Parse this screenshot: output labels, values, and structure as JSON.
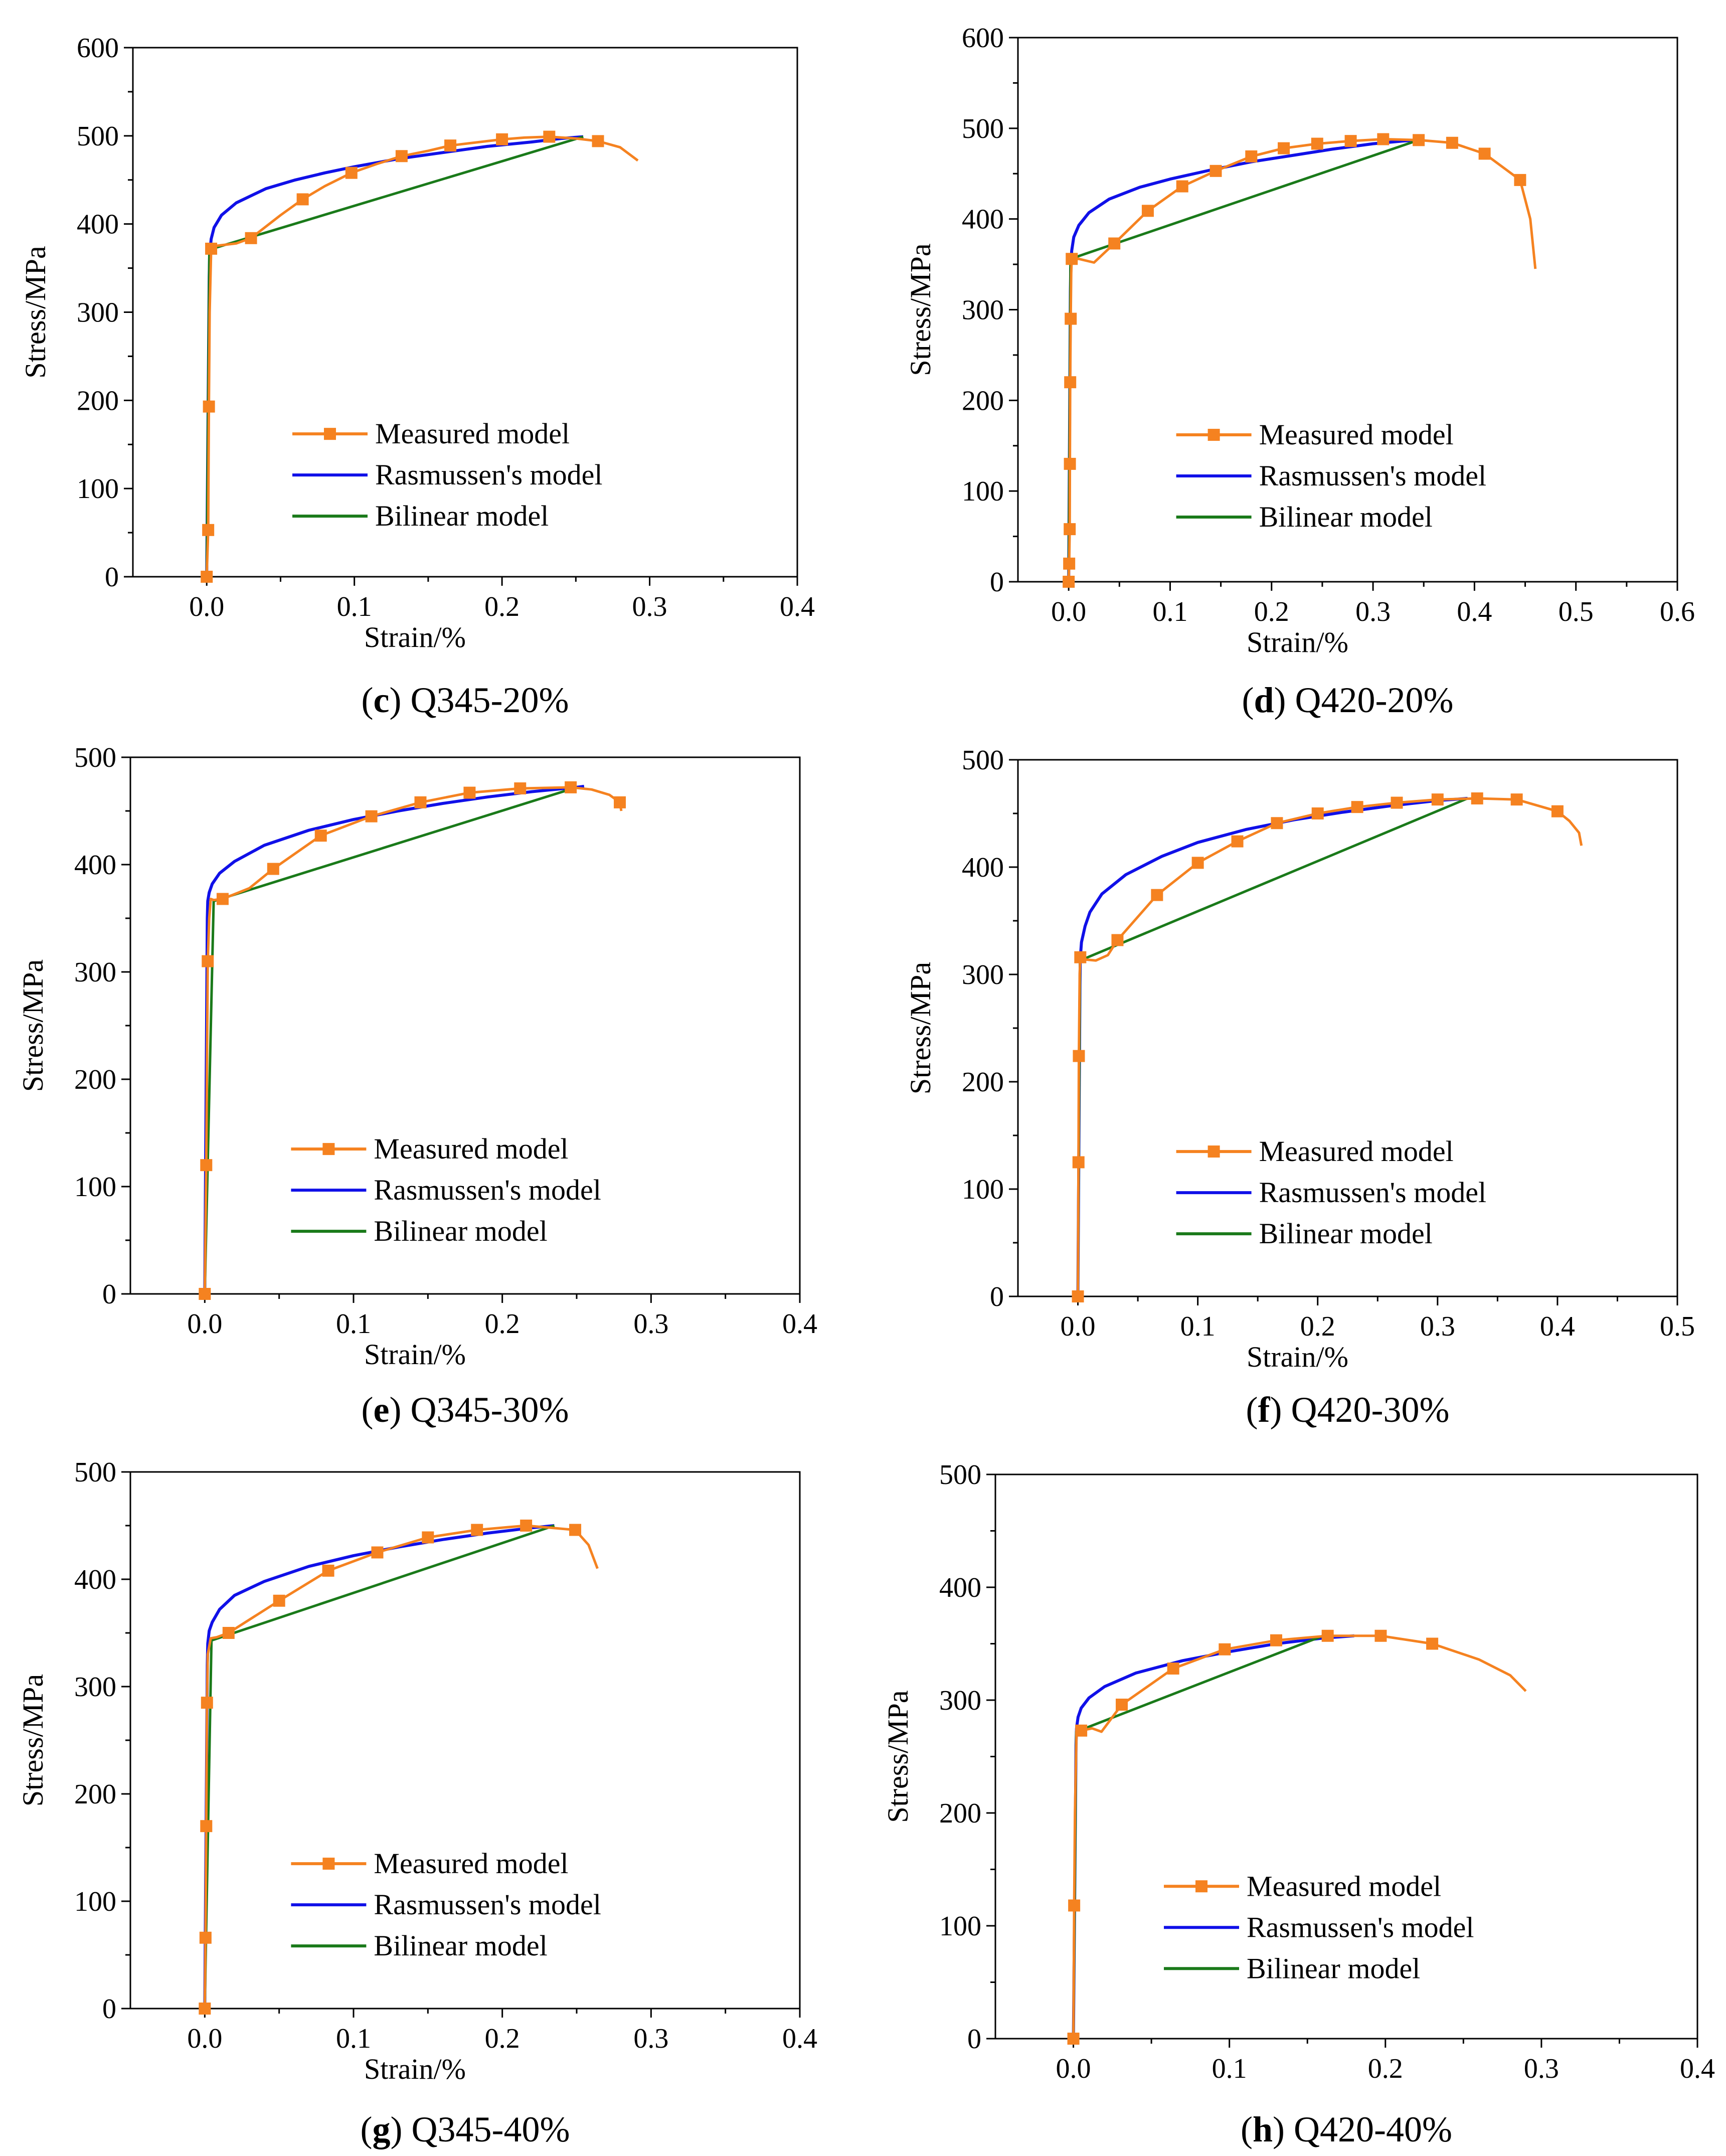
{
  "colors": {
    "measured": "#F58220",
    "rasmussen": "#1010E8",
    "bilinear": "#1A7A1A",
    "axis": "#000000"
  },
  "legend": {
    "position": "bottom-right",
    "entries": [
      "Measured model",
      "Rasmussen's model",
      "Bilinear model"
    ]
  },
  "chart_data": [
    {
      "type": "line",
      "caption": {
        "letter": "c",
        "text": "Q345-20%"
      },
      "xlabel": "Strain/%",
      "ylabel": "Stress/MPa",
      "xlim": [
        -0.05,
        0.4
      ],
      "ylim": [
        0,
        600
      ],
      "xticks": [
        "0.0",
        "0.1",
        "0.2",
        "0.3",
        "0.4"
      ],
      "yticks": [
        "0",
        "100",
        "200",
        "300",
        "400",
        "500",
        "600"
      ],
      "series": [
        {
          "name": "Measured model",
          "markers": true,
          "x": [
            0,
            0.001,
            0.0015,
            0.002,
            0.003,
            0.005,
            0.01,
            0.02,
            0.03,
            0.05,
            0.065,
            0.08,
            0.098,
            0.115,
            0.132,
            0.15,
            0.165,
            0.18,
            0.2,
            0.215,
            0.232,
            0.25,
            0.265,
            0.28,
            0.292
          ],
          "y": [
            0,
            53,
            193,
            300,
            372,
            375,
            376,
            378,
            384,
            410,
            428,
            443,
            458,
            468,
            477,
            483,
            489,
            492,
            496,
            498,
            499,
            497,
            494,
            487,
            472
          ],
          "marker_x": [
            0.0,
            0.001,
            0.0015,
            0.003,
            0.03,
            0.065,
            0.098,
            0.132,
            0.165,
            0.2,
            0.232,
            0.265
          ],
          "marker_y": [
            0,
            53,
            193,
            372,
            384,
            428,
            458,
            477,
            489,
            496,
            499,
            494
          ]
        },
        {
          "name": "Rasmussen's model",
          "x": [
            0,
            0.0017,
            0.002,
            0.003,
            0.005,
            0.01,
            0.02,
            0.04,
            0.06,
            0.08,
            0.1,
            0.13,
            0.16,
            0.19,
            0.22,
            0.24,
            0.255
          ],
          "y": [
            0,
            340,
            365,
            383,
            396,
            410,
            424,
            440,
            450,
            458,
            465,
            474,
            481,
            488,
            493,
            497,
            499
          ]
        },
        {
          "name": "Bilinear model",
          "x": [
            0,
            0.0018,
            0.255
          ],
          "y": [
            0,
            371,
            499
          ]
        }
      ]
    },
    {
      "type": "line",
      "caption": {
        "letter": "d",
        "text": "Q420-20%"
      },
      "xlabel": "Strain/%",
      "ylabel": "Stress/MPa",
      "xlim": [
        -0.05,
        0.6
      ],
      "ylim": [
        0,
        600
      ],
      "xticks": [
        "0.0",
        "0.1",
        "0.2",
        "0.3",
        "0.4",
        "0.5",
        "0.6"
      ],
      "yticks": [
        "0",
        "100",
        "200",
        "300",
        "400",
        "500",
        "600"
      ],
      "series": [
        {
          "name": "Measured model",
          "markers": true,
          "x": [
            0,
            0.0005,
            0.001,
            0.0012,
            0.0015,
            0.002,
            0.0025,
            0.003,
            0.01,
            0.025,
            0.045,
            0.078,
            0.112,
            0.145,
            0.18,
            0.212,
            0.245,
            0.278,
            0.31,
            0.345,
            0.378,
            0.41,
            0.445,
            0.455,
            0.46
          ],
          "y": [
            0,
            20,
            58,
            130,
            220,
            290,
            340,
            356,
            356,
            352,
            373,
            409,
            436,
            453,
            469,
            478,
            483,
            486,
            488,
            487,
            484,
            472,
            443,
            400,
            345
          ],
          "marker_x": [
            0.0,
            0.0005,
            0.001,
            0.0012,
            0.0015,
            0.002,
            0.003,
            0.045,
            0.078,
            0.112,
            0.145,
            0.18,
            0.212,
            0.245,
            0.278,
            0.31,
            0.345,
            0.378,
            0.41,
            0.445
          ],
          "marker_y": [
            0,
            20,
            58,
            130,
            220,
            290,
            356,
            373,
            409,
            436,
            453,
            469,
            478,
            483,
            486,
            488,
            487,
            484,
            472,
            443
          ]
        },
        {
          "name": "Rasmussen's model",
          "x": [
            0,
            0.0017,
            0.002,
            0.003,
            0.005,
            0.01,
            0.02,
            0.04,
            0.07,
            0.1,
            0.14,
            0.18,
            0.22,
            0.26,
            0.3,
            0.33,
            0.345
          ],
          "y": [
            0,
            320,
            345,
            365,
            380,
            393,
            407,
            422,
            435,
            444,
            454,
            463,
            470,
            477,
            483,
            486,
            487
          ]
        },
        {
          "name": "Bilinear model",
          "x": [
            0,
            0.0018,
            0.345
          ],
          "y": [
            0,
            356,
            487
          ]
        }
      ]
    },
    {
      "type": "line",
      "caption": {
        "letter": "e",
        "text": "Q345-30%"
      },
      "xlabel": "Strain/%",
      "ylabel": "Stress/MPa",
      "xlim": [
        -0.05,
        0.4
      ],
      "ylim": [
        0,
        500
      ],
      "xticks": [
        "0.0",
        "0.1",
        "0.2",
        "0.3",
        "0.4"
      ],
      "yticks": [
        "0",
        "100",
        "200",
        "300",
        "400",
        "500"
      ],
      "series": [
        {
          "name": "Measured model",
          "markers": true,
          "x": [
            0,
            0.001,
            0.002,
            0.003,
            0.004,
            0.006,
            0.012,
            0.03,
            0.046,
            0.078,
            0.112,
            0.145,
            0.178,
            0.212,
            0.246,
            0.26,
            0.272,
            0.279,
            0.28
          ],
          "y": [
            0,
            120,
            310,
            350,
            368,
            367,
            368,
            378,
            396,
            427,
            445,
            458,
            467,
            471,
            472,
            470,
            465,
            458,
            450
          ],
          "marker_x": [
            0.0,
            0.001,
            0.002,
            0.012,
            0.046,
            0.078,
            0.112,
            0.145,
            0.178,
            0.212,
            0.246,
            0.279
          ],
          "marker_y": [
            0,
            120,
            310,
            368,
            396,
            427,
            445,
            458,
            467,
            471,
            472,
            458
          ]
        },
        {
          "name": "Rasmussen's model",
          "x": [
            0,
            0.0017,
            0.002,
            0.003,
            0.005,
            0.01,
            0.02,
            0.04,
            0.07,
            0.1,
            0.13,
            0.16,
            0.19,
            0.22,
            0.25,
            0.255
          ],
          "y": [
            0,
            350,
            366,
            374,
            382,
            392,
            403,
            418,
            432,
            442,
            450,
            457,
            463,
            468,
            472,
            473
          ]
        },
        {
          "name": "Bilinear model",
          "x": [
            0,
            0.006,
            0.25
          ],
          "y": [
            0,
            366,
            472
          ]
        }
      ]
    },
    {
      "type": "line",
      "caption": {
        "letter": "f",
        "text": "Q420-30%"
      },
      "xlabel": "Strain/%",
      "ylabel": "Stress/MPa",
      "xlim": [
        -0.05,
        0.5
      ],
      "ylim": [
        0,
        500
      ],
      "xticks": [
        "0.0",
        "0.1",
        "0.2",
        "0.3",
        "0.4",
        "0.5"
      ],
      "yticks": [
        "0",
        "100",
        "200",
        "300",
        "400",
        "500"
      ],
      "series": [
        {
          "name": "Measured model",
          "markers": true,
          "x": [
            0,
            0.0005,
            0.0008,
            0.0015,
            0.002,
            0.005,
            0.015,
            0.025,
            0.033,
            0.066,
            0.1,
            0.133,
            0.166,
            0.2,
            0.233,
            0.266,
            0.3,
            0.333,
            0.366,
            0.4,
            0.41,
            0.418,
            0.42
          ],
          "y": [
            0,
            125,
            224,
            300,
            316,
            314,
            313,
            318,
            332,
            374,
            404,
            424,
            441,
            450,
            456,
            460,
            463,
            464,
            463,
            452,
            443,
            432,
            420
          ],
          "marker_x": [
            0.0,
            0.0005,
            0.0008,
            0.002,
            0.033,
            0.066,
            0.1,
            0.133,
            0.166,
            0.2,
            0.233,
            0.266,
            0.3,
            0.333,
            0.366,
            0.4
          ],
          "marker_y": [
            0,
            125,
            224,
            316,
            332,
            374,
            404,
            424,
            441,
            450,
            456,
            460,
            463,
            464,
            463,
            452
          ]
        },
        {
          "name": "Rasmussen's model",
          "x": [
            0,
            0.0017,
            0.002,
            0.003,
            0.006,
            0.01,
            0.02,
            0.04,
            0.07,
            0.1,
            0.14,
            0.18,
            0.22,
            0.26,
            0.3,
            0.325
          ],
          "y": [
            0,
            290,
            315,
            330,
            345,
            358,
            375,
            393,
            410,
            423,
            435,
            444,
            451,
            457,
            462,
            464
          ]
        },
        {
          "name": "Bilinear model",
          "x": [
            0,
            0.0018,
            0.325
          ],
          "y": [
            0,
            313,
            464
          ]
        }
      ]
    },
    {
      "type": "line",
      "caption": {
        "letter": "g",
        "text": "Q345-40%"
      },
      "xlabel": "Strain/%",
      "ylabel": "Stress/MPa",
      "xlim": [
        -0.05,
        0.4
      ],
      "ylim": [
        0,
        500
      ],
      "xticks": [
        "0.0",
        "0.1",
        "0.2",
        "0.3",
        "0.4"
      ],
      "yticks": [
        "0",
        "100",
        "200",
        "300",
        "400",
        "500"
      ],
      "series": [
        {
          "name": "Measured model",
          "markers": true,
          "x": [
            0,
            0.0005,
            0.001,
            0.0015,
            0.002,
            0.004,
            0.008,
            0.016,
            0.05,
            0.083,
            0.116,
            0.15,
            0.183,
            0.216,
            0.249,
            0.258,
            0.264
          ],
          "y": [
            0,
            66,
            170,
            285,
            330,
            345,
            346,
            350,
            380,
            408,
            425,
            439,
            446,
            450,
            446,
            432,
            410
          ],
          "marker_x": [
            0.0,
            0.0005,
            0.001,
            0.0015,
            0.016,
            0.05,
            0.083,
            0.116,
            0.15,
            0.183,
            0.216,
            0.249
          ],
          "marker_y": [
            0,
            66,
            170,
            285,
            350,
            380,
            408,
            425,
            439,
            446,
            450,
            446
          ]
        },
        {
          "name": "Rasmussen's model",
          "x": [
            0,
            0.0017,
            0.002,
            0.003,
            0.005,
            0.01,
            0.02,
            0.04,
            0.07,
            0.1,
            0.13,
            0.16,
            0.19,
            0.22,
            0.235
          ],
          "y": [
            0,
            320,
            340,
            352,
            360,
            372,
            385,
            398,
            412,
            422,
            430,
            437,
            443,
            448,
            450
          ]
        },
        {
          "name": "Bilinear model",
          "x": [
            0,
            0.0045,
            0.235
          ],
          "y": [
            0,
            343,
            450
          ]
        }
      ]
    },
    {
      "type": "line",
      "caption": {
        "letter": "h",
        "text": "Q420-40%"
      },
      "xlabel": "",
      "ylabel": "Stress/MPa",
      "xlim": [
        -0.05,
        0.4
      ],
      "ylim": [
        0,
        500
      ],
      "xticks": [
        "0.0",
        "0.1",
        "0.2",
        "0.3",
        "0.4"
      ],
      "yticks": [
        "0",
        "100",
        "200",
        "300",
        "400",
        "500"
      ],
      "series": [
        {
          "name": "Measured model",
          "markers": true,
          "x": [
            0,
            0.0005,
            0.001,
            0.002,
            0.005,
            0.012,
            0.018,
            0.031,
            0.064,
            0.097,
            0.13,
            0.163,
            0.197,
            0.23,
            0.26,
            0.28,
            0.29
          ],
          "y": [
            0,
            118,
            200,
            272,
            273,
            275,
            272,
            296,
            328,
            345,
            353,
            357,
            357,
            350,
            336,
            322,
            308
          ],
          "marker_x": [
            0.0,
            0.0005,
            0.005,
            0.031,
            0.064,
            0.097,
            0.13,
            0.163,
            0.197,
            0.23
          ],
          "marker_y": [
            0,
            118,
            273,
            296,
            328,
            345,
            353,
            357,
            357,
            350
          ]
        },
        {
          "name": "Rasmussen's model",
          "x": [
            0,
            0.0017,
            0.002,
            0.003,
            0.005,
            0.01,
            0.02,
            0.04,
            0.07,
            0.1,
            0.13,
            0.16,
            0.18
          ],
          "y": [
            0,
            260,
            275,
            285,
            293,
            302,
            312,
            324,
            335,
            343,
            350,
            355,
            357
          ]
        },
        {
          "name": "Bilinear model",
          "x": [
            0,
            0.0018,
            0.16
          ],
          "y": [
            0,
            272,
            357
          ]
        }
      ]
    }
  ]
}
